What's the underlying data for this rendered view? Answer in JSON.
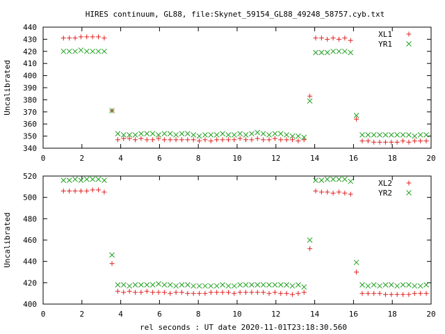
{
  "title": "HIRES continuum, GL88, file:Skynet_59154_GL88_49248_58757.cyb.txt",
  "colors": {
    "series1": "#e02020",
    "series2": "#20a020",
    "axis": "#000000"
  },
  "chart_data": [
    {
      "type": "scatter",
      "ylabel": "Uncalibrated",
      "xlabel": "",
      "xlim": [
        0,
        20
      ],
      "ylim": [
        340,
        440
      ],
      "xticks": [
        0,
        2,
        4,
        6,
        8,
        10,
        12,
        14,
        16,
        18,
        20
      ],
      "yticks": [
        340,
        350,
        360,
        370,
        380,
        390,
        400,
        410,
        420,
        430,
        440
      ],
      "legend_position": "top-right",
      "series": [
        {
          "name": "XL1",
          "marker": "plus",
          "x": [
            1.05,
            1.35,
            1.65,
            1.95,
            2.25,
            2.55,
            2.85,
            3.15,
            3.55,
            3.85,
            4.15,
            4.45,
            4.75,
            5.05,
            5.35,
            5.65,
            5.95,
            6.25,
            6.55,
            6.85,
            7.15,
            7.45,
            7.75,
            8.05,
            8.35,
            8.65,
            8.95,
            9.25,
            9.55,
            9.85,
            10.15,
            10.45,
            10.75,
            11.05,
            11.35,
            11.65,
            11.95,
            12.25,
            12.55,
            12.85,
            13.15,
            13.45,
            13.75,
            14.05,
            14.35,
            14.65,
            14.95,
            15.25,
            15.55,
            15.85,
            16.15,
            16.45,
            16.75,
            17.05,
            17.35,
            17.65,
            17.95,
            18.25,
            18.55,
            18.85,
            19.15,
            19.45,
            19.75
          ],
          "y": [
            431,
            431,
            431,
            432,
            432,
            432,
            432,
            431,
            371,
            347,
            348,
            348,
            347,
            348,
            347,
            347,
            348,
            347,
            347,
            347,
            347,
            347,
            347,
            346,
            347,
            346,
            347,
            347,
            347,
            347,
            348,
            347,
            347,
            348,
            347,
            347,
            348,
            347,
            347,
            347,
            346,
            347,
            383,
            431,
            431,
            430,
            431,
            430,
            431,
            429,
            364,
            346,
            346,
            345,
            345,
            345,
            345,
            345,
            346,
            345,
            346,
            346,
            346
          ]
        },
        {
          "name": "YR1",
          "marker": "cross",
          "x": [
            1.05,
            1.35,
            1.65,
            1.95,
            2.25,
            2.55,
            2.85,
            3.15,
            3.55,
            3.85,
            4.15,
            4.45,
            4.75,
            5.05,
            5.35,
            5.65,
            5.95,
            6.25,
            6.55,
            6.85,
            7.15,
            7.45,
            7.75,
            8.05,
            8.35,
            8.65,
            8.95,
            9.25,
            9.55,
            9.85,
            10.15,
            10.45,
            10.75,
            11.05,
            11.35,
            11.65,
            11.95,
            12.25,
            12.55,
            12.85,
            13.15,
            13.45,
            13.75,
            14.05,
            14.35,
            14.65,
            14.95,
            15.25,
            15.55,
            15.85,
            16.15,
            16.45,
            16.75,
            17.05,
            17.35,
            17.65,
            17.95,
            18.25,
            18.55,
            18.85,
            19.15,
            19.45,
            19.75
          ],
          "y": [
            420,
            420,
            420,
            421,
            420,
            420,
            420,
            420,
            371,
            352,
            351,
            351,
            351,
            352,
            352,
            352,
            351,
            352,
            352,
            351,
            352,
            352,
            351,
            350,
            351,
            351,
            351,
            352,
            351,
            351,
            352,
            351,
            352,
            353,
            352,
            351,
            352,
            352,
            351,
            350,
            350,
            349,
            379,
            419,
            419,
            419,
            420,
            420,
            420,
            419,
            367,
            351,
            351,
            351,
            351,
            351,
            351,
            351,
            351,
            351,
            350,
            351,
            351
          ]
        }
      ]
    },
    {
      "type": "scatter",
      "ylabel": "Uncalibrated",
      "xlabel": "rel seconds : UT date 2020-11-01T23:18:30.560",
      "xlim": [
        0,
        20
      ],
      "ylim": [
        400,
        520
      ],
      "xticks": [
        0,
        2,
        4,
        6,
        8,
        10,
        12,
        14,
        16,
        18,
        20
      ],
      "yticks": [
        400,
        420,
        440,
        460,
        480,
        500,
        520
      ],
      "legend_position": "top-right",
      "series": [
        {
          "name": "XL2",
          "marker": "plus",
          "x": [
            1.05,
            1.35,
            1.65,
            1.95,
            2.25,
            2.55,
            2.85,
            3.15,
            3.55,
            3.85,
            4.15,
            4.45,
            4.75,
            5.05,
            5.35,
            5.65,
            5.95,
            6.25,
            6.55,
            6.85,
            7.15,
            7.45,
            7.75,
            8.05,
            8.35,
            8.65,
            8.95,
            9.25,
            9.55,
            9.85,
            10.15,
            10.45,
            10.75,
            11.05,
            11.35,
            11.65,
            11.95,
            12.25,
            12.55,
            12.85,
            13.15,
            13.45,
            13.75,
            14.05,
            14.35,
            14.65,
            14.95,
            15.25,
            15.55,
            15.85,
            16.15,
            16.45,
            16.75,
            17.05,
            17.35,
            17.65,
            17.95,
            18.25,
            18.55,
            18.85,
            19.15,
            19.45,
            19.75
          ],
          "y": [
            506,
            506,
            506,
            506,
            506,
            507,
            507,
            505,
            438,
            412,
            411,
            412,
            411,
            411,
            412,
            411,
            411,
            411,
            410,
            411,
            411,
            410,
            410,
            410,
            410,
            411,
            411,
            411,
            411,
            410,
            411,
            411,
            411,
            411,
            411,
            410,
            411,
            410,
            410,
            409,
            410,
            411,
            452,
            506,
            505,
            505,
            504,
            505,
            504,
            503,
            430,
            410,
            410,
            410,
            410,
            409,
            409,
            409,
            409,
            409,
            410,
            410,
            410
          ]
        },
        {
          "name": "YR2",
          "marker": "cross",
          "x": [
            1.05,
            1.35,
            1.65,
            1.95,
            2.25,
            2.55,
            2.85,
            3.15,
            3.55,
            3.85,
            4.15,
            4.45,
            4.75,
            5.05,
            5.35,
            5.65,
            5.95,
            6.25,
            6.55,
            6.85,
            7.15,
            7.45,
            7.75,
            8.05,
            8.35,
            8.65,
            8.95,
            9.25,
            9.55,
            9.85,
            10.15,
            10.45,
            10.75,
            11.05,
            11.35,
            11.65,
            11.95,
            12.25,
            12.55,
            12.85,
            13.15,
            13.45,
            13.75,
            14.05,
            14.35,
            14.65,
            14.95,
            15.25,
            15.55,
            15.85,
            16.15,
            16.45,
            16.75,
            17.05,
            17.35,
            17.65,
            17.95,
            18.25,
            18.55,
            18.85,
            19.15,
            19.45,
            19.75
          ],
          "y": [
            516,
            516,
            517,
            516,
            517,
            517,
            517,
            516,
            446,
            418,
            418,
            417,
            418,
            418,
            418,
            418,
            419,
            418,
            418,
            417,
            418,
            418,
            417,
            417,
            417,
            417,
            417,
            418,
            417,
            417,
            418,
            418,
            418,
            418,
            418,
            418,
            418,
            418,
            418,
            417,
            418,
            416,
            460,
            516,
            516,
            517,
            517,
            517,
            517,
            515,
            439,
            418,
            417,
            418,
            417,
            418,
            418,
            417,
            418,
            418,
            417,
            417,
            418
          ]
        }
      ]
    }
  ]
}
